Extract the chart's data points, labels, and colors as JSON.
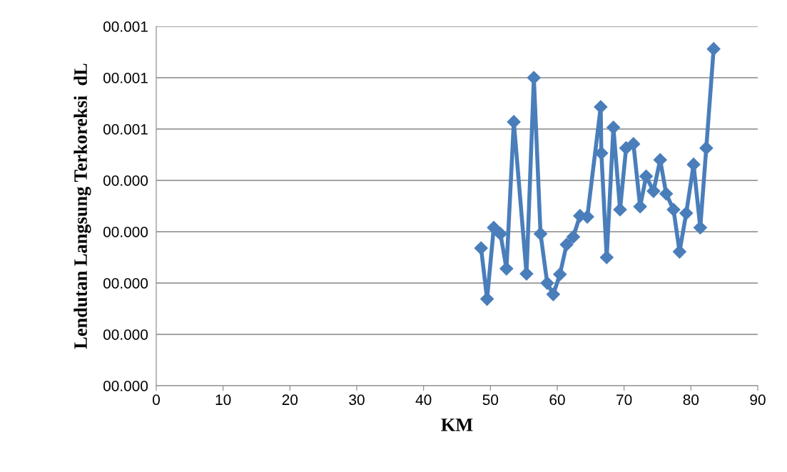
{
  "chart_data": {
    "type": "line",
    "xlabel": "KM",
    "ylabel": "Lendutan Langsung Terkoreksi  dL",
    "x": [
      48.6,
      49.5,
      50.5,
      51.5,
      52.4,
      53.5,
      55.4,
      56.5,
      57.5,
      58.5,
      59.4,
      60.4,
      61.4,
      62.4,
      63.4,
      64.5,
      66.5,
      66.6,
      67.4,
      68.4,
      69.4,
      70.3,
      71.4,
      72.4,
      73.3,
      74.4,
      75.4,
      76.3,
      77.4,
      78.3,
      79.3,
      80.4,
      81.4,
      82.3,
      83.4
    ],
    "series": [
      {
        "color": "#4a7ebb",
        "values": [
          0.000268,
          0.000169,
          0.000308,
          0.000296,
          0.000228,
          0.000514,
          0.000218,
          0.0006,
          0.000296,
          0.0002,
          0.000178,
          0.000217,
          0.000275,
          0.00029,
          0.000331,
          0.000329,
          0.000543,
          0.000453,
          0.00025,
          0.000503,
          0.000343,
          0.000463,
          0.000471,
          0.000349,
          0.000408,
          0.000379,
          0.00044,
          0.000374,
          0.000343,
          0.000261,
          0.000336,
          0.000431,
          0.000308,
          0.000463,
          0.000656
        ]
      }
    ],
    "xlim": [
      0,
      90
    ],
    "xticks": [
      0,
      10,
      20,
      30,
      40,
      50,
      60,
      70,
      80,
      90
    ],
    "ylim": [
      0,
      0.0007
    ],
    "yticks": [
      {
        "value": 0,
        "label": "00.000"
      },
      {
        "value": 0.0001,
        "label": "00.000"
      },
      {
        "value": 0.0002,
        "label": "00.000"
      },
      {
        "value": 0.0003,
        "label": "00.000"
      },
      {
        "value": 0.0004,
        "label": "00.000"
      },
      {
        "value": 0.0005,
        "label": "00.001"
      },
      {
        "value": 0.0006,
        "label": "00.001"
      },
      {
        "value": 0.0007,
        "label": "00.001"
      }
    ],
    "grid": "y",
    "marker": "diamond",
    "line_style": "solid"
  }
}
